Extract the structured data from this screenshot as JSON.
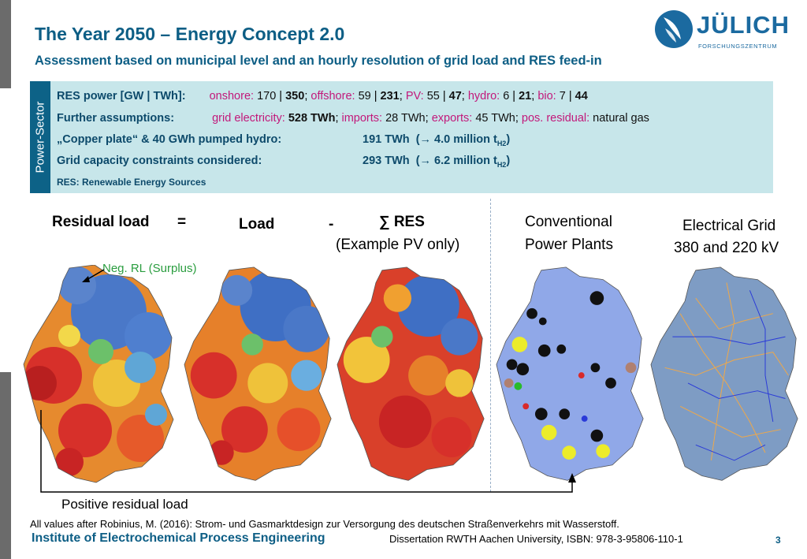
{
  "header": {
    "title": "The Year 2050 – Energy Concept 2.0",
    "subtitle": "Assessment based on municipal level and an hourly resolution of grid load and RES feed-in"
  },
  "logo": {
    "name": "JÜLICH",
    "sub": "FORSCHUNGSZENTRUM"
  },
  "info": {
    "side_label": "Power-Sector",
    "res_label": "RES power [GW | TWh]:",
    "res_values": [
      {
        "key": "onshore:",
        "gw": "170",
        "twh": "350"
      },
      {
        "key": "offshore:",
        "gw": "59",
        "twh": "231"
      },
      {
        "key": "PV:",
        "gw": "55",
        "twh": "47"
      },
      {
        "key": "hydro:",
        "gw": "6",
        "twh": "21"
      },
      {
        "key": "bio:",
        "gw": "7",
        "twh": "44"
      }
    ],
    "further_label": "Further assumptions:",
    "grid_key": "grid electricity:",
    "grid_val": "528 TWh",
    "imports_key": "imports:",
    "imports_val": "28 TWh",
    "exports_key": "exports:",
    "exports_val": "45 TWh",
    "residual_key": "pos. residual:",
    "residual_val": "natural gas",
    "copper_label": "„Copper plate“ & 40 GWh pumped hydro:",
    "copper_twh": "191 TWh",
    "copper_h2": "(→ 4.0 million t",
    "grid_cap_label": "Grid capacity constraints considered:",
    "grid_cap_twh": "293 TWh",
    "grid_cap_h2": "(→ 6.2 million t",
    "h2_sub": "H2",
    "h2_close": ")",
    "res_def": "RES: Renewable Energy Sources"
  },
  "equation": {
    "residual": "Residual load",
    "equals": "=",
    "load": "Load",
    "minus": "-",
    "sum_res": "∑ RES",
    "pv_only": "(Example PV only)",
    "conventional_1": "Conventional",
    "conventional_2": "Power Plants",
    "grid_1": "Electrical Grid",
    "grid_2": "380 and 220 kV"
  },
  "annotations": {
    "neg_rl": "Neg. RL (Surplus)",
    "pos_rl": "Positive residual load"
  },
  "footer": {
    "source": "All values after Robinius, M. (2016): Strom- und Gasmarktdesign zur Versorgung des deutschen Straßenverkehrs mit Wasserstoff.",
    "dissertation": "Dissertation RWTH Aachen University, ISBN: 978-3-95806-110-1",
    "institute": "Institute of Electrochemical Process Engineering",
    "page": "3"
  },
  "colors": {
    "accent": "#0d5e85",
    "info_bg": "#c7e6ea",
    "magenta": "#c2187a",
    "surplus_green": "#2a9d3f"
  }
}
